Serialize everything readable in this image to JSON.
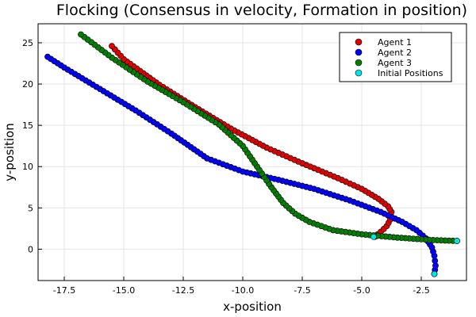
{
  "chart_data": {
    "type": "scatter",
    "title": "Flocking (Consensus in velocity, Formation in position)",
    "xlabel": "x-position",
    "ylabel": "y-position",
    "xlim": [
      -18.6,
      -0.6
    ],
    "ylim": [
      -3.8,
      27.3
    ],
    "xticks": [
      -17.5,
      -15.0,
      -12.5,
      -10.0,
      -7.5,
      -5.0,
      -2.5
    ],
    "xtick_labels": [
      "-17.5",
      "-15.0",
      "-12.5",
      "-10.0",
      "-7.5",
      "-5.0",
      "-2.5"
    ],
    "yticks": [
      0,
      5,
      10,
      15,
      20,
      25
    ],
    "ytick_labels": [
      "0",
      "5",
      "10",
      "15",
      "20",
      "25"
    ],
    "grid": true,
    "legend_position": "top-right",
    "series": [
      {
        "name": "Agent 1",
        "color": "#e00000",
        "points": [
          [
            -4.45,
            1.5
          ],
          [
            -4.2,
            2.1
          ],
          [
            -3.95,
            2.8
          ],
          [
            -3.8,
            3.6
          ],
          [
            -3.75,
            4.5
          ],
          [
            -3.9,
            5.2
          ],
          [
            -4.3,
            6.1
          ],
          [
            -5.0,
            7.3
          ],
          [
            -6.0,
            8.6
          ],
          [
            -7.5,
            10.4
          ],
          [
            -9.0,
            12.3
          ],
          [
            -10.5,
            14.6
          ],
          [
            -12.0,
            17.2
          ],
          [
            -13.5,
            19.9
          ],
          [
            -15.0,
            23.0
          ],
          [
            -15.5,
            24.6
          ]
        ]
      },
      {
        "name": "Agent 2",
        "color": "#0000ff",
        "points": [
          [
            -1.95,
            -3.0
          ],
          [
            -1.9,
            -2.0
          ],
          [
            -1.95,
            -0.8
          ],
          [
            -2.05,
            0.2
          ],
          [
            -2.3,
            1.3
          ],
          [
            -2.7,
            2.3
          ],
          [
            -3.3,
            3.3
          ],
          [
            -4.2,
            4.5
          ],
          [
            -5.5,
            5.9
          ],
          [
            -7.0,
            7.3
          ],
          [
            -8.5,
            8.4
          ],
          [
            -10.0,
            9.4
          ],
          [
            -11.5,
            11.0
          ],
          [
            -13.0,
            14.0
          ],
          [
            -14.5,
            16.8
          ],
          [
            -16.0,
            19.4
          ],
          [
            -17.5,
            22.0
          ],
          [
            -18.2,
            23.3
          ]
        ]
      },
      {
        "name": "Agent 3",
        "color": "#008000",
        "points": [
          [
            -1.0,
            1.0
          ],
          [
            -2.0,
            1.1
          ],
          [
            -3.5,
            1.4
          ],
          [
            -5.0,
            1.8
          ],
          [
            -6.2,
            2.3
          ],
          [
            -7.2,
            3.3
          ],
          [
            -7.8,
            4.3
          ],
          [
            -8.3,
            5.6
          ],
          [
            -8.8,
            7.5
          ],
          [
            -9.4,
            10.0
          ],
          [
            -10.0,
            12.5
          ],
          [
            -11.0,
            15.1
          ],
          [
            -12.5,
            17.8
          ],
          [
            -14.0,
            20.3
          ],
          [
            -15.5,
            23.2
          ],
          [
            -16.8,
            26.0
          ]
        ]
      }
    ],
    "initial_positions": {
      "name": "Initial Positions",
      "color": "#00e5e5",
      "points": [
        [
          -4.5,
          1.5
        ],
        [
          -1.95,
          -3.0
        ],
        [
          -1.0,
          1.0
        ]
      ]
    }
  }
}
